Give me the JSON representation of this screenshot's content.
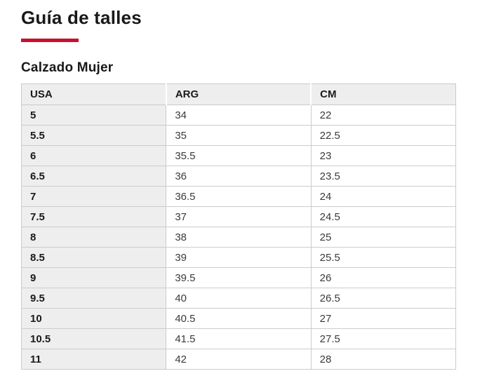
{
  "page": {
    "title": "Guía de talles",
    "subtitle": "Calzado Mujer",
    "accent_color": "#c8102e"
  },
  "table": {
    "columns": [
      "USA",
      "ARG",
      "CM"
    ],
    "rows": [
      [
        "5",
        "34",
        "22"
      ],
      [
        "5.5",
        "35",
        "22.5"
      ],
      [
        "6",
        "35.5",
        "23"
      ],
      [
        "6.5",
        "36",
        "23.5"
      ],
      [
        "7",
        "36.5",
        "24"
      ],
      [
        "7.5",
        "37",
        "24.5"
      ],
      [
        "8",
        "38",
        "25"
      ],
      [
        "8.5",
        "39",
        "25.5"
      ],
      [
        "9",
        "39.5",
        "26"
      ],
      [
        "9.5",
        "40",
        "26.5"
      ],
      [
        "10",
        "40.5",
        "27"
      ],
      [
        "10.5",
        "41.5",
        "27.5"
      ],
      [
        "11",
        "42",
        "28"
      ]
    ],
    "colors": {
      "header_background": "#eeeeee",
      "first_column_background": "#eeeeee",
      "border": "#cccccc"
    }
  }
}
